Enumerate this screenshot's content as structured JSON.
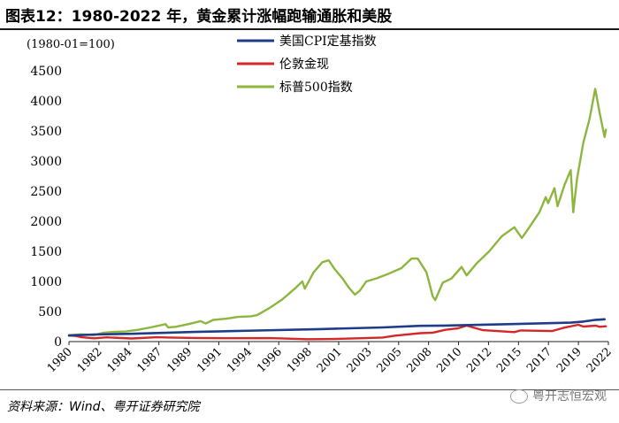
{
  "header": {
    "title": "图表12：1980-2022 年，黄金累计涨幅跑输通胀和美股"
  },
  "footer": {
    "source": "资料来源：Wind、粤开证券研究院",
    "watermark": "粤开志恒宏观"
  },
  "chart_data": {
    "type": "line",
    "title": "图表12：1980-2022 年，黄金累计涨幅跑输通胀和美股",
    "ylabel": "(1980-01=100)",
    "xlabel": "",
    "ylim": [
      0,
      4500
    ],
    "xlim": [
      1980.0,
      2023.0
    ],
    "yticks": [
      0,
      500,
      1000,
      1500,
      2000,
      2500,
      3000,
      3500,
      4000,
      4500
    ],
    "xtick_labels": [
      "1980",
      "1982",
      "1984",
      "1987",
      "1989",
      "1991",
      "1994",
      "1996",
      "1998",
      "2001",
      "2003",
      "2005",
      "2008",
      "2010",
      "2012",
      "2015",
      "2017",
      "2019",
      "2022"
    ],
    "legend_position": "top-center",
    "series": [
      {
        "name": "美国CPI定基指数",
        "color": "#1f3c88",
        "x": [
          1980,
          1982,
          1985,
          1990,
          1995,
          2000,
          2005,
          2008,
          2010,
          2015,
          2020,
          2021,
          2022,
          2022.7
        ],
        "y": [
          100,
          117,
          130,
          160,
          184,
          208,
          236,
          262,
          266,
          289,
          314,
          332,
          362,
          370
        ]
      },
      {
        "name": "伦敦金现",
        "color": "#d62728",
        "x": [
          1980,
          1980.5,
          1981,
          1982,
          1983,
          1985,
          1987,
          1988,
          1990,
          1993,
          1996,
          1999,
          2001,
          2003,
          2005,
          2006,
          2008,
          2009,
          2010,
          2011.0,
          2011.7,
          2013,
          2015.5,
          2016,
          2018.5,
          2019.5,
          2020.6,
          2021,
          2022,
          2022.3,
          2022.8
        ],
        "y": [
          100,
          95,
          72,
          55,
          70,
          52,
          72,
          68,
          60,
          56,
          58,
          40,
          42,
          55,
          68,
          98,
          140,
          148,
          195,
          220,
          265,
          190,
          158,
          185,
          175,
          232,
          280,
          250,
          265,
          245,
          255
        ]
      },
      {
        "name": "标普500指数",
        "color": "#8db63f",
        "x": [
          1980,
          1981,
          1982,
          1982.7,
          1983.5,
          1984.5,
          1985.5,
          1986.5,
          1987.7,
          1987.9,
          1988.5,
          1989.5,
          1990.5,
          1990.9,
          1991.5,
          1992.5,
          1993.5,
          1994.5,
          1995,
          1996,
          1997,
          1998,
          1998.6,
          1998.8,
          1999.5,
          2000.2,
          2000.7,
          2001.2,
          2001.8,
          2002.3,
          2002.8,
          2003.2,
          2003.7,
          2004.5,
          2005.5,
          2006.5,
          2007.3,
          2007.8,
          2008.5,
          2009.0,
          2009.2,
          2009.8,
          2010.5,
          2011.3,
          2011.7,
          2012.5,
          2013.5,
          2014.5,
          2015.5,
          2016.1,
          2016.7,
          2017.5,
          2018.0,
          2018.2,
          2018.7,
          2018.95,
          2019.5,
          2020.0,
          2020.2,
          2020.5,
          2021.0,
          2021.5,
          2021.95,
          2022.3,
          2022.5,
          2022.7,
          2022.8
        ],
        "y": [
          108,
          120,
          108,
          145,
          160,
          168,
          195,
          235,
          290,
          235,
          245,
          290,
          340,
          300,
          360,
          380,
          410,
          420,
          440,
          560,
          700,
          880,
          1000,
          880,
          1150,
          1320,
          1350,
          1200,
          1050,
          900,
          780,
          850,
          1000,
          1050,
          1130,
          1220,
          1380,
          1380,
          1150,
          750,
          690,
          980,
          1050,
          1240,
          1100,
          1300,
          1500,
          1750,
          1900,
          1720,
          1900,
          2150,
          2400,
          2300,
          2550,
          2250,
          2600,
          2850,
          2150,
          2700,
          3300,
          3700,
          4200,
          3800,
          3600,
          3400,
          3520
        ]
      }
    ]
  }
}
